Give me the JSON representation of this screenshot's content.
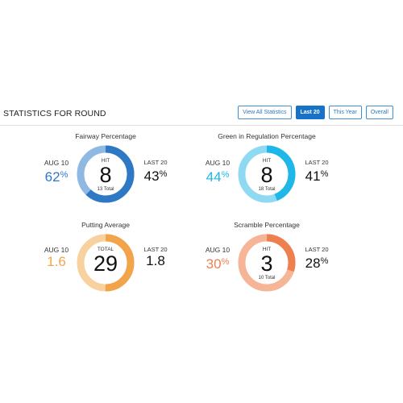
{
  "page": {
    "title": "STATISTICS FOR ROUND",
    "buttons": [
      {
        "label": "View All Statistics",
        "active": false
      },
      {
        "label": "Last 20",
        "active": true
      },
      {
        "label": "This Year",
        "active": false
      },
      {
        "label": "Overall",
        "active": false
      }
    ]
  },
  "stats": {
    "fairway": {
      "title": "Fairway Percentage",
      "center_top": "HIT",
      "center_value": "8",
      "center_bottom": "13 Total",
      "left_label": "AUG 10",
      "left_value": "62",
      "left_unit": "%",
      "right_label": "LAST 20",
      "right_value": "43",
      "right_unit": "%",
      "fraction": 0.62,
      "color_main": "#2f78c4",
      "color_light": "#8fb9e3",
      "left_color": "#2f78c4"
    },
    "gir": {
      "title": "Green in Regulation Percentage",
      "center_top": "HIT",
      "center_value": "8",
      "center_bottom": "18 Total",
      "left_label": "AUG 10",
      "left_value": "44",
      "left_unit": "%",
      "right_label": "LAST 20",
      "right_value": "41",
      "right_unit": "%",
      "fraction": 0.44,
      "color_main": "#1fb6e8",
      "color_light": "#8fd9f3",
      "left_color": "#1fb6e8"
    },
    "putting": {
      "title": "Putting Average",
      "center_top": "TOTAL",
      "center_value": "29",
      "center_bottom": "",
      "left_label": "AUG 10",
      "left_value": "1.6",
      "left_unit": "",
      "right_label": "LAST 20",
      "right_value": "1.8",
      "right_unit": "",
      "fraction": 0.5,
      "color_main": "#f2a44a",
      "color_light": "#f8d29e",
      "left_color": "#f2a44a"
    },
    "scramble": {
      "title": "Scramble Percentage",
      "center_top": "HIT",
      "center_value": "3",
      "center_bottom": "10 Total",
      "left_label": "AUG 10",
      "left_value": "30",
      "left_unit": "%",
      "right_label": "LAST 20",
      "right_value": "28",
      "right_unit": "%",
      "fraction": 0.3,
      "color_main": "#ee7f4f",
      "color_light": "#f5b596",
      "left_color": "#ee7f4f"
    }
  }
}
